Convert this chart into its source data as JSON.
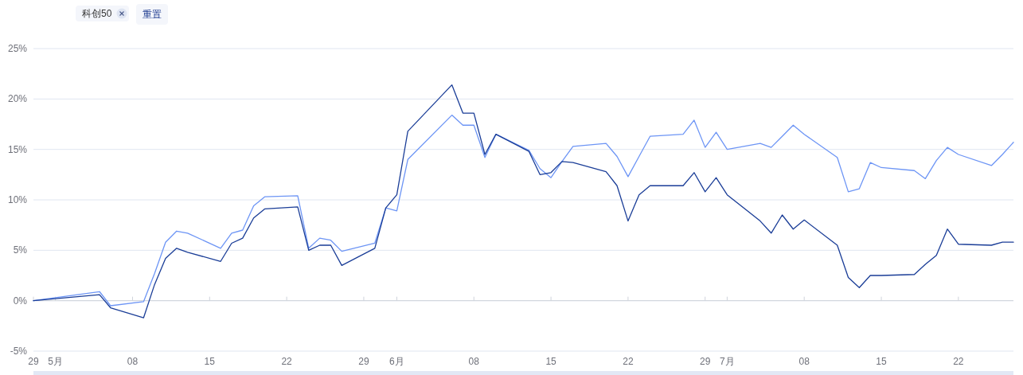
{
  "chart_data": {
    "type": "line",
    "x": [
      "--04-29",
      "--05-05",
      "--05-06",
      "--05-09",
      "--05-10",
      "--05-11",
      "--05-12",
      "--05-13",
      "--05-16",
      "--05-17",
      "--05-18",
      "--05-19",
      "--05-20",
      "--05-23",
      "--05-24",
      "--05-25",
      "--05-26",
      "--05-27",
      "--05-30",
      "--05-31",
      "--06-01",
      "--06-02",
      "--06-06",
      "--06-07",
      "--06-08",
      "--06-09",
      "--06-10",
      "--06-13",
      "--06-14",
      "--06-15",
      "--06-16",
      "--06-17",
      "--06-20",
      "--06-21",
      "--06-22",
      "--06-23",
      "--06-24",
      "--06-27",
      "--06-28",
      "--06-29",
      "--06-30",
      "--07-01",
      "--07-04",
      "--07-05",
      "--07-06",
      "--07-07",
      "--07-08",
      "--07-11",
      "--07-12",
      "--07-13",
      "--07-14",
      "--07-15",
      "--07-18",
      "--07-19",
      "--07-20",
      "--07-21",
      "--07-22",
      "--07-25",
      "--07-26",
      "--07-27"
    ],
    "series": [
      {
        "color": "#6d95f5",
        "values": [
          0.0,
          0.9,
          -0.5,
          -0.1,
          2.7,
          5.8,
          6.9,
          6.7,
          5.2,
          6.7,
          7.0,
          9.4,
          10.3,
          10.4,
          5.2,
          6.2,
          6.0,
          4.9,
          5.7,
          9.2,
          8.9,
          14.0,
          18.4,
          17.4,
          17.4,
          14.2,
          16.5,
          14.9,
          13.1,
          12.2,
          13.8,
          15.3,
          15.6,
          14.3,
          12.3,
          14.3,
          16.3,
          16.5,
          17.9,
          15.2,
          16.7,
          15.0,
          15.6,
          15.2,
          16.3,
          17.4,
          16.5,
          14.2,
          10.8,
          11.1,
          13.7,
          13.2,
          12.9,
          12.1,
          13.9,
          15.2,
          14.5,
          13.4,
          14.5,
          15.7
        ]
      },
      {
        "color": "#1a3d97",
        "values": [
          0.0,
          0.6,
          -0.7,
          -1.7,
          1.6,
          4.2,
          5.2,
          4.8,
          3.9,
          5.7,
          6.2,
          8.2,
          9.1,
          9.3,
          5.0,
          5.5,
          5.5,
          3.5,
          5.2,
          9.2,
          10.5,
          16.8,
          21.4,
          18.6,
          18.6,
          14.5,
          16.5,
          14.8,
          12.5,
          12.7,
          13.8,
          13.7,
          12.8,
          11.4,
          7.9,
          10.5,
          11.4,
          11.4,
          12.7,
          10.8,
          12.2,
          10.5,
          7.9,
          6.7,
          8.5,
          7.1,
          8.0,
          5.5,
          2.3,
          1.3,
          2.5,
          2.5,
          2.6,
          3.6,
          4.5,
          7.1,
          5.6,
          5.5,
          5.8,
          5.8
        ]
      }
    ],
    "xlim": [
      "--04-29",
      "--07-27"
    ],
    "xticks": [
      {
        "value": "--04-29",
        "label": "29"
      },
      {
        "value": "--05-01",
        "label": "5月"
      },
      {
        "value": "--05-08",
        "label": "08"
      },
      {
        "value": "--05-15",
        "label": "15"
      },
      {
        "value": "--05-22",
        "label": "22"
      },
      {
        "value": "--05-29",
        "label": "29"
      },
      {
        "value": "--06-01",
        "label": "6月"
      },
      {
        "value": "--06-08",
        "label": "08"
      },
      {
        "value": "--06-15",
        "label": "15"
      },
      {
        "value": "--06-22",
        "label": "22"
      },
      {
        "value": "--06-29",
        "label": "29"
      },
      {
        "value": "--07-01",
        "label": "7月"
      },
      {
        "value": "--07-08",
        "label": "08"
      },
      {
        "value": "--07-15",
        "label": "15"
      },
      {
        "value": "--07-22",
        "label": "22"
      }
    ],
    "ylim": [
      -5,
      25
    ],
    "yticks": [
      {
        "value": -5,
        "label": "-5%"
      },
      {
        "value": 0,
        "label": "0%"
      },
      {
        "value": 5,
        "label": "5%"
      },
      {
        "value": 10,
        "label": "10%"
      },
      {
        "value": 15,
        "label": "15%"
      },
      {
        "value": 20,
        "label": "20%"
      },
      {
        "value": 25,
        "label": "25%"
      }
    ],
    "grid": "y",
    "annotations": [
      "科创50",
      "重置"
    ]
  }
}
